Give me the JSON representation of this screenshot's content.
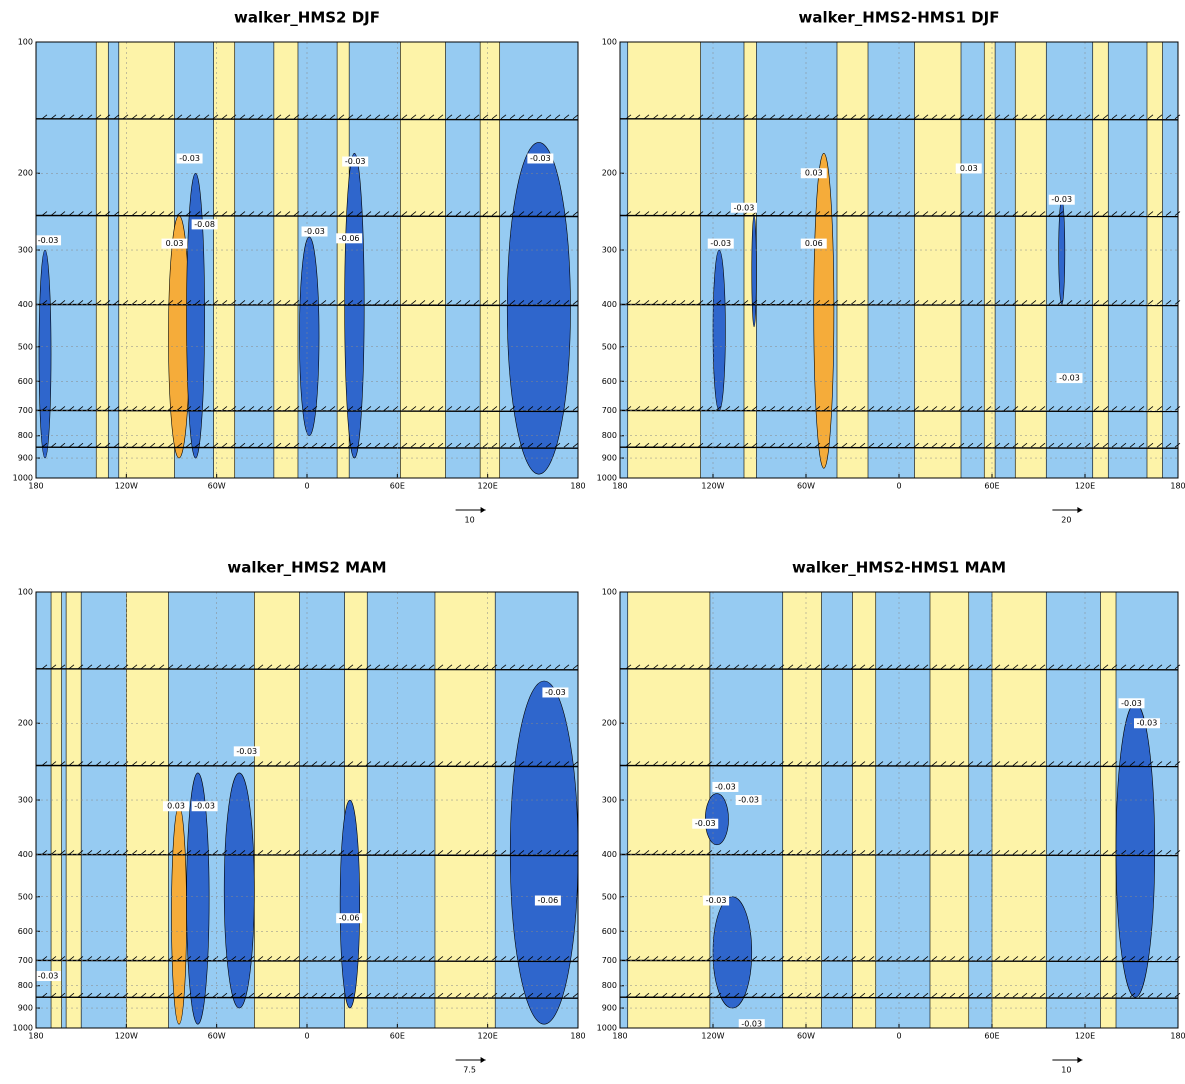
{
  "chart_data": [
    {
      "type": "contour",
      "title": "walker_HMS2 DJF",
      "xlim": [
        -180,
        180
      ],
      "ylim": [
        1000,
        100
      ],
      "yscale": "log",
      "grid": true,
      "xticks": [
        {
          "value": -180,
          "label": "180"
        },
        {
          "value": -120,
          "label": "120W"
        },
        {
          "value": -60,
          "label": "60W"
        },
        0,
        {
          "value": 60,
          "label": "60E"
        },
        {
          "value": 120,
          "label": "120E"
        },
        {
          "value": 180,
          "label": "180"
        }
      ],
      "yticks": [
        100,
        200,
        300,
        400,
        500,
        600,
        700,
        800,
        900,
        1000
      ],
      "vector_reference": "10",
      "fill_colors": {
        "background": "#96cbf2",
        "positive": "#fdf3a8",
        "strong_positive": "#f5ac3a",
        "negative": "#2f66cc"
      },
      "annotations": [
        {
          "text": "-0.03",
          "lon": -78,
          "p": 185
        },
        {
          "text": "-0.08",
          "lon": -68,
          "p": 262
        },
        {
          "text": "0.03",
          "lon": -88,
          "p": 290
        },
        {
          "text": "-0.03",
          "lon": 32,
          "p": 188
        },
        {
          "text": "-0.03",
          "lon": 155,
          "p": 185
        },
        {
          "text": "-0.03",
          "lon": -172,
          "p": 285
        },
        {
          "text": "-0.06",
          "lon": 28,
          "p": 282
        },
        {
          "text": "-0.03",
          "lon": 5,
          "p": 272
        }
      ]
    },
    {
      "type": "contour",
      "title": "walker_HMS2-HMS1 DJF",
      "xlim": [
        -180,
        180
      ],
      "ylim": [
        1000,
        100
      ],
      "yscale": "log",
      "grid": true,
      "xticks": [
        {
          "value": -180,
          "label": "180"
        },
        {
          "value": -120,
          "label": "120W"
        },
        {
          "value": -60,
          "label": "60W"
        },
        0,
        {
          "value": 60,
          "label": "60E"
        },
        {
          "value": 120,
          "label": "120E"
        },
        {
          "value": 180,
          "label": "180"
        }
      ],
      "yticks": [
        100,
        200,
        300,
        400,
        500,
        600,
        700,
        800,
        900,
        1000
      ],
      "vector_reference": "20",
      "fill_colors": {
        "background": "#96cbf2",
        "positive": "#fdf3a8",
        "strong_positive": "#f5ac3a",
        "negative": "#2f66cc"
      },
      "annotations": [
        {
          "text": "-0.03",
          "lon": -100,
          "p": 240
        },
        {
          "text": "0.03",
          "lon": -55,
          "p": 200
        },
        {
          "text": "0.06",
          "lon": -55,
          "p": 290
        },
        {
          "text": "-0.03",
          "lon": -115,
          "p": 290
        },
        {
          "text": "0.03",
          "lon": 45,
          "p": 195
        },
        {
          "text": "-0.03",
          "lon": 105,
          "p": 230
        },
        {
          "text": "-0.03",
          "lon": 110,
          "p": 590
        }
      ]
    },
    {
      "type": "contour",
      "title": "walker_HMS2 MAM",
      "xlim": [
        -180,
        180
      ],
      "ylim": [
        1000,
        100
      ],
      "yscale": "log",
      "grid": true,
      "xticks": [
        {
          "value": -180,
          "label": "180"
        },
        {
          "value": -120,
          "label": "120W"
        },
        {
          "value": -60,
          "label": "60W"
        },
        0,
        {
          "value": 60,
          "label": "60E"
        },
        {
          "value": 120,
          "label": "120E"
        },
        {
          "value": 180,
          "label": "180"
        }
      ],
      "yticks": [
        100,
        200,
        300,
        400,
        500,
        600,
        700,
        800,
        900,
        1000
      ],
      "vector_reference": "7.5",
      "fill_colors": {
        "background": "#96cbf2",
        "positive": "#fdf3a8",
        "strong_positive": "#f5ac3a",
        "negative": "#2f66cc"
      },
      "annotations": [
        {
          "text": "-0.03",
          "lon": -40,
          "p": 232
        },
        {
          "text": "0.03",
          "lon": -87,
          "p": 310
        },
        {
          "text": "-0.03",
          "lon": -68,
          "p": 310
        },
        {
          "text": "-0.06",
          "lon": 160,
          "p": 510
        },
        {
          "text": "-0.03",
          "lon": 165,
          "p": 170
        },
        {
          "text": "-0.06",
          "lon": 28,
          "p": 560
        },
        {
          "text": "-0.03",
          "lon": -172,
          "p": 760
        }
      ]
    },
    {
      "type": "contour",
      "title": "walker_HMS2-HMS1 MAM",
      "xlim": [
        -180,
        180
      ],
      "ylim": [
        1000,
        100
      ],
      "yscale": "log",
      "grid": true,
      "xticks": [
        {
          "value": -180,
          "label": "180"
        },
        {
          "value": -120,
          "label": "120W"
        },
        {
          "value": -60,
          "label": "60W"
        },
        0,
        {
          "value": 60,
          "label": "60E"
        },
        {
          "value": 120,
          "label": "120E"
        },
        {
          "value": 180,
          "label": "180"
        }
      ],
      "yticks": [
        100,
        200,
        300,
        400,
        500,
        600,
        700,
        800,
        900,
        1000
      ],
      "vector_reference": "10",
      "fill_colors": {
        "background": "#96cbf2",
        "positive": "#fdf3a8",
        "strong_positive": "#f5ac3a",
        "negative": "#2f66cc"
      },
      "annotations": [
        {
          "text": "-0.03",
          "lon": -112,
          "p": 280
        },
        {
          "text": "-0.03",
          "lon": -125,
          "p": 340
        },
        {
          "text": "-0.03",
          "lon": -97,
          "p": 300
        },
        {
          "text": "-0.03",
          "lon": -118,
          "p": 510
        },
        {
          "text": "-0.03",
          "lon": 150,
          "p": 180
        },
        {
          "text": "-0.03",
          "lon": 160,
          "p": 200
        },
        {
          "text": "-0.03",
          "lon": -95,
          "p": 980
        }
      ]
    }
  ]
}
